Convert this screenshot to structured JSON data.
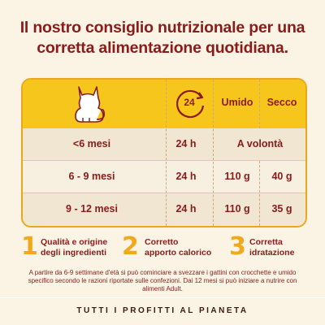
{
  "title": {
    "line1": "Il nostro consiglio nutrizionale per una",
    "line2": "corretta alimentazione quotidiana."
  },
  "table": {
    "icons": {
      "age": "cat-icon",
      "time": "clock-24-icon"
    },
    "header": {
      "time": "24",
      "wet": "Umido",
      "dry": "Secco"
    },
    "rows": [
      {
        "age": "<6 mesi",
        "time": "24 h",
        "wet": "A volontà",
        "dry": ""
      },
      {
        "age": "6 - 9 mesi",
        "time": "24 h",
        "wet": "110 g",
        "dry": "40 g"
      },
      {
        "age": "9 - 12 mesi",
        "time": "24 h",
        "wet": "110 g",
        "dry": "35 g"
      }
    ]
  },
  "features": [
    {
      "number": "1",
      "line1": "Qualità e origine",
      "line2": "degli ingredienti"
    },
    {
      "number": "2",
      "line1": "Corretto",
      "line2": "apporto calorico"
    },
    {
      "number": "3",
      "line1": "Corretta",
      "line2": "idratazione"
    }
  ],
  "note": "A partire da 6-9 settimane d'età si può cominciare a svezzare i gattini con crocchette e umido specifico secondo le razioni riportate sulle confezioni. Dai 12 mesi si può iniziare a nutrire con alimenti Adult.",
  "footer": "TUTTI I PROFITTI AL PIANETA",
  "colors": {
    "accent": "#f7c61c",
    "text": "#8a1b1b",
    "number": "#f0a81c",
    "background": "#fbf3e4"
  }
}
